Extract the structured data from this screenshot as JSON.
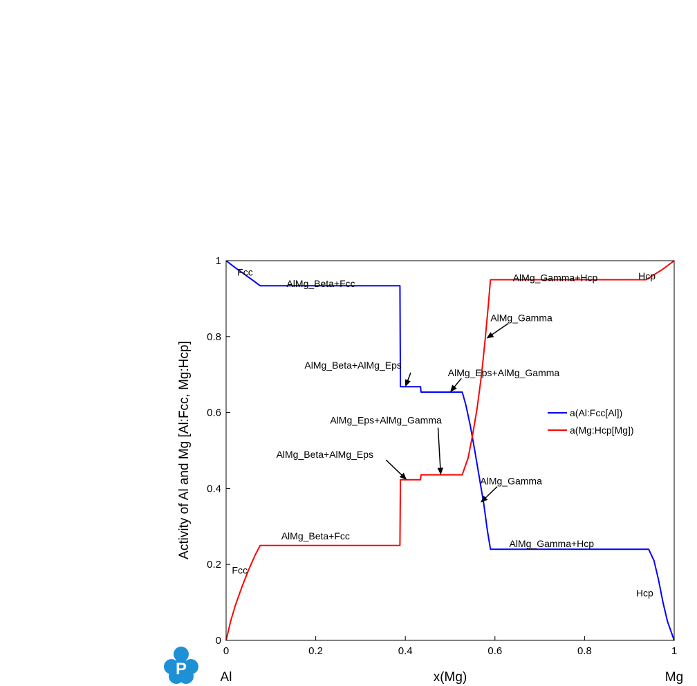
{
  "chart_data": {
    "type": "line",
    "title": "",
    "xlabel": "x(Mg)",
    "ylabel": "Activity of Al and Mg [Al:Fcc, Mg:Hcp]",
    "xlim": [
      0,
      1
    ],
    "ylim": [
      0,
      1
    ],
    "xticks": [
      "0",
      "0.2",
      "0.4",
      "0.6",
      "0.8",
      "1"
    ],
    "yticks": [
      "0",
      "0.2",
      "0.4",
      "0.6",
      "0.8",
      "1"
    ],
    "axis_end_labels": {
      "left": "Al",
      "right": "Mg"
    },
    "grid": false,
    "legend_position": "right-middle",
    "series": [
      {
        "name": "a(Al:Fcc[Al])",
        "color": "#0000ff",
        "points": [
          [
            0,
            1
          ],
          [
            0.02,
            0.982
          ],
          [
            0.04,
            0.965
          ],
          [
            0.06,
            0.948
          ],
          [
            0.076,
            0.934
          ],
          [
            0.388,
            0.934
          ],
          [
            0.389,
            0.668
          ],
          [
            0.434,
            0.668
          ],
          [
            0.435,
            0.654
          ],
          [
            0.527,
            0.654
          ],
          [
            0.535,
            0.62
          ],
          [
            0.545,
            0.565
          ],
          [
            0.555,
            0.5
          ],
          [
            0.565,
            0.43
          ],
          [
            0.575,
            0.36
          ],
          [
            0.583,
            0.29
          ],
          [
            0.59,
            0.24
          ],
          [
            0.943,
            0.24
          ],
          [
            0.955,
            0.21
          ],
          [
            0.965,
            0.16
          ],
          [
            0.975,
            0.1
          ],
          [
            0.985,
            0.05
          ],
          [
            1,
            0
          ]
        ]
      },
      {
        "name": "a(Mg:Hcp[Mg])",
        "color": "#ff0000",
        "points": [
          [
            0,
            0
          ],
          [
            0.01,
            0.05
          ],
          [
            0.02,
            0.09
          ],
          [
            0.035,
            0.14
          ],
          [
            0.05,
            0.185
          ],
          [
            0.065,
            0.225
          ],
          [
            0.076,
            0.25
          ],
          [
            0.388,
            0.25
          ],
          [
            0.389,
            0.423
          ],
          [
            0.434,
            0.423
          ],
          [
            0.435,
            0.436
          ],
          [
            0.527,
            0.436
          ],
          [
            0.54,
            0.48
          ],
          [
            0.55,
            0.54
          ],
          [
            0.56,
            0.61
          ],
          [
            0.57,
            0.7
          ],
          [
            0.578,
            0.79
          ],
          [
            0.585,
            0.88
          ],
          [
            0.59,
            0.95
          ],
          [
            0.937,
            0.95
          ],
          [
            0.955,
            0.963
          ],
          [
            0.975,
            0.978
          ],
          [
            1,
            1
          ]
        ]
      }
    ],
    "annotations": [
      {
        "text": "Fcc",
        "x": 0.025,
        "y": 0.97,
        "arrow": false
      },
      {
        "text": "AlMg_Beta+Fcc",
        "x": 0.135,
        "y": 0.94,
        "arrow": false
      },
      {
        "text": "AlMg_Gamma+Hcp",
        "x": 0.64,
        "y": 0.955,
        "arrow": false
      },
      {
        "text": "Hcp",
        "x": 0.92,
        "y": 0.96,
        "arrow": false
      },
      {
        "text": "AlMg_Gamma",
        "x": 0.59,
        "y": 0.85,
        "arrow": true,
        "tail": [
          0.63,
          0.835
        ],
        "head": [
          0.581,
          0.795
        ]
      },
      {
        "text": "AlMg_Beta+AlMg_Eps",
        "x": 0.175,
        "y": 0.725,
        "arrow": true,
        "tail": [
          0.412,
          0.705
        ],
        "head": [
          0.4,
          0.668
        ]
      },
      {
        "text": "AlMg_Eps+AlMg_Gamma",
        "x": 0.495,
        "y": 0.705,
        "arrow": true,
        "tail": [
          0.525,
          0.69
        ],
        "head": [
          0.5,
          0.654
        ]
      },
      {
        "text": "AlMg_Eps+AlMg_Gamma",
        "x": 0.232,
        "y": 0.58,
        "arrow": true,
        "tail": [
          0.473,
          0.56
        ],
        "head": [
          0.479,
          0.436
        ]
      },
      {
        "text": "AlMg_Beta+AlMg_Eps",
        "x": 0.112,
        "y": 0.49,
        "arrow": true,
        "tail": [
          0.357,
          0.475
        ],
        "head": [
          0.403,
          0.423
        ]
      },
      {
        "text": "AlMg_Gamma",
        "x": 0.567,
        "y": 0.42,
        "arrow": true,
        "tail": [
          0.605,
          0.405
        ],
        "head": [
          0.568,
          0.363
        ]
      },
      {
        "text": "AlMg_Beta+Fcc",
        "x": 0.123,
        "y": 0.275,
        "arrow": false
      },
      {
        "text": "AlMg_Gamma+Hcp",
        "x": 0.632,
        "y": 0.255,
        "arrow": false
      },
      {
        "text": "Fcc",
        "x": 0.013,
        "y": 0.185,
        "arrow": false
      },
      {
        "text": "Hcp",
        "x": 0.915,
        "y": 0.125,
        "arrow": false
      }
    ],
    "logo": "p-cloud-logo"
  }
}
